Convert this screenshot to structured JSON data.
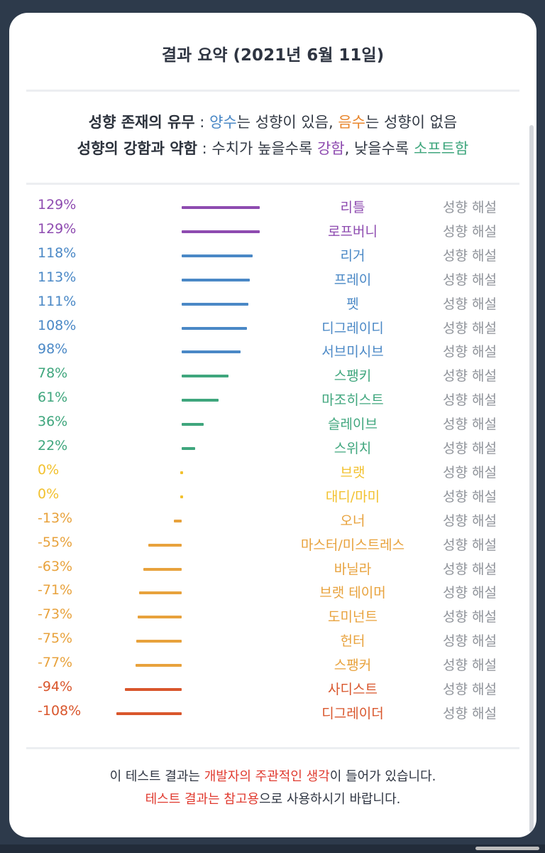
{
  "title": "결과 요약 (2021년 6월 11일)",
  "legend": {
    "line1": {
      "label": "성향 존재의 유무",
      "sep": " : ",
      "positive_word": "양수",
      "mid1": "는 성향이 있음, ",
      "negative_word": "음수",
      "mid2": "는 성향이 없음"
    },
    "line2": {
      "label": "성향의 강함과 약함",
      "sep": " : ",
      "text1": "수치가 높을수록 ",
      "strong_word": "강함",
      "text2": ", 낮을수록 ",
      "soft_word": "소프트함"
    }
  },
  "link_label": "성향 해설",
  "colors": {
    "purple": "#8e4bb0",
    "blue": "#4a88c6",
    "green": "#3fa67d",
    "yellow": "#f2c12e",
    "orange": "#e8a23c",
    "red": "#d9562c",
    "link_gray": "#8f939a",
    "background": "#2d3a4b"
  },
  "chart_data": {
    "type": "bar",
    "orientation": "horizontal",
    "categories": [
      "리틀",
      "로프버니",
      "리거",
      "프레이",
      "펫",
      "디그레이디",
      "서브미시브",
      "스팽키",
      "마조히스트",
      "슬레이브",
      "스위치",
      "브랫",
      "대디/마미",
      "오너",
      "마스터/미스트레스",
      "바닐라",
      "브랫 테이머",
      "도미넌트",
      "헌터",
      "스팽커",
      "사디스트",
      "디그레이더"
    ],
    "values": [
      129,
      129,
      118,
      113,
      111,
      108,
      98,
      78,
      61,
      36,
      22,
      0,
      0,
      -13,
      -55,
      -63,
      -71,
      -73,
      -75,
      -77,
      -94,
      -108
    ],
    "labels": [
      "129%",
      "129%",
      "118%",
      "113%",
      "111%",
      "108%",
      "98%",
      "78%",
      "61%",
      "36%",
      "22%",
      "0%",
      "0%",
      "-13%",
      "-55%",
      "-63%",
      "-71%",
      "-73%",
      "-75%",
      "-77%",
      "-94%",
      "-108%"
    ],
    "color_groups": [
      "purple",
      "purple",
      "blue",
      "blue",
      "blue",
      "blue",
      "blue",
      "green",
      "green",
      "green",
      "green",
      "yellow",
      "yellow",
      "orange",
      "orange",
      "orange",
      "orange",
      "orange",
      "orange",
      "orange",
      "red",
      "red"
    ],
    "unit": "%",
    "xlim": [
      -108,
      129
    ],
    "grid": false
  },
  "footer": {
    "line1_a": "이 테스트 결과는 ",
    "line1_highlight": "개발자의 주관적인 생각",
    "line1_b": "이 들어가 있습니다.",
    "line2_highlight": "테스트 결과는 참고용",
    "line2_b": "으로 사용하시기 바랍니다."
  }
}
